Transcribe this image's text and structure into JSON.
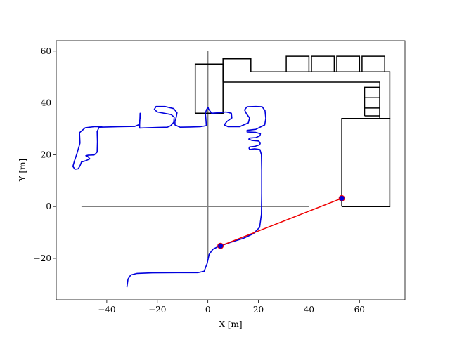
{
  "chart_data": {
    "type": "line",
    "xlabel": "X [m]",
    "ylabel": "Y [m]",
    "xlim": [
      -60,
      78
    ],
    "ylim": [
      -36,
      64
    ],
    "xticks": [
      -40,
      -20,
      0,
      20,
      40,
      60
    ],
    "yticks": [
      -20,
      0,
      20,
      40,
      60
    ],
    "xtick_labels": [
      "−40",
      "−20",
      "0",
      "20",
      "40",
      "60"
    ],
    "ytick_labels": [
      "−20",
      "0",
      "20",
      "40",
      "60"
    ],
    "grid": false,
    "colors": {
      "trajectory": "#0000dd",
      "segment": "#ee0000",
      "axes_cross": "#808080",
      "map": "#000000"
    },
    "crosshair": {
      "horizontal": [
        [
          -50,
          0
        ],
        [
          40,
          0
        ]
      ],
      "vertical": [
        [
          0,
          -20
        ],
        [
          0,
          60
        ]
      ]
    },
    "map_polylines": [
      [
        [
          -5,
          36
        ],
        [
          -5,
          55
        ],
        [
          6,
          55
        ],
        [
          6,
          36
        ],
        [
          -5,
          36
        ]
      ],
      [
        [
          6,
          48
        ],
        [
          6,
          57
        ],
        [
          17,
          57
        ],
        [
          17,
          52
        ],
        [
          72,
          52
        ],
        [
          72,
          34
        ],
        [
          68,
          34
        ],
        [
          68,
          48
        ],
        [
          6,
          48
        ]
      ],
      [
        [
          31,
          52
        ],
        [
          31,
          58
        ],
        [
          40,
          58
        ],
        [
          40,
          52
        ]
      ],
      [
        [
          41,
          52
        ],
        [
          41,
          58
        ],
        [
          50,
          58
        ],
        [
          50,
          52
        ]
      ],
      [
        [
          51,
          52
        ],
        [
          51,
          58
        ],
        [
          60,
          58
        ],
        [
          60,
          52
        ]
      ],
      [
        [
          61,
          52
        ],
        [
          61,
          58
        ],
        [
          70,
          58
        ],
        [
          70,
          52
        ]
      ],
      [
        [
          53,
          0
        ],
        [
          53,
          34
        ],
        [
          72,
          34
        ],
        [
          72,
          0
        ],
        [
          53,
          0
        ]
      ],
      [
        [
          62,
          35
        ],
        [
          62,
          46
        ],
        [
          68,
          46
        ],
        [
          68,
          35
        ],
        [
          62,
          35
        ]
      ],
      [
        [
          62,
          42
        ],
        [
          68,
          42
        ]
      ],
      [
        [
          62,
          38
        ],
        [
          68,
          38
        ]
      ]
    ],
    "trajectory": [
      [
        -32,
        -31
      ],
      [
        -31.6,
        -28
      ],
      [
        -30.5,
        -26.4
      ],
      [
        -28,
        -25.8
      ],
      [
        -22,
        -25.6
      ],
      [
        -12,
        -25.5
      ],
      [
        -4,
        -25.5
      ],
      [
        -1.5,
        -25
      ],
      [
        -0.3,
        -22
      ],
      [
        0.5,
        -18.5
      ],
      [
        2,
        -16.5
      ],
      [
        4,
        -15.5
      ],
      [
        5,
        -15.2
      ],
      [
        9,
        -13.8
      ],
      [
        14,
        -12.3
      ],
      [
        18,
        -10.5
      ],
      [
        20.5,
        -8
      ],
      [
        21.2,
        -3
      ],
      [
        21.3,
        5
      ],
      [
        21.3,
        14
      ],
      [
        21.2,
        20
      ],
      [
        20.6,
        22
      ],
      [
        18.5,
        22.3
      ],
      [
        16.5,
        22
      ],
      [
        16.3,
        22.5
      ],
      [
        16.5,
        23
      ],
      [
        18.5,
        23.2
      ],
      [
        20.5,
        23.8
      ],
      [
        20.8,
        24.6
      ],
      [
        20,
        25.3
      ],
      [
        17.5,
        25.5
      ],
      [
        16.2,
        26
      ],
      [
        16.5,
        26.4
      ],
      [
        19,
        26.6
      ],
      [
        20.6,
        27.3
      ],
      [
        20.8,
        28.1
      ],
      [
        19,
        28.6
      ],
      [
        15.5,
        28.8
      ],
      [
        15.5,
        29.4
      ],
      [
        19,
        29.8
      ],
      [
        22.5,
        31.5
      ],
      [
        22.9,
        34
      ],
      [
        22.6,
        37
      ],
      [
        21.5,
        38.5
      ],
      [
        19,
        38.6
      ],
      [
        15.5,
        38.5
      ],
      [
        14.5,
        37.3
      ],
      [
        15.3,
        35.8
      ],
      [
        16.5,
        34.2
      ],
      [
        16,
        32.3
      ],
      [
        12.5,
        30.8
      ],
      [
        8,
        30.8
      ],
      [
        6.5,
        31.5
      ],
      [
        7.5,
        32.8
      ],
      [
        9.5,
        34.2
      ],
      [
        9.3,
        36
      ],
      [
        7.2,
        36.5
      ],
      [
        4.5,
        36.2
      ],
      [
        1.5,
        36
      ],
      [
        0.3,
        37.6
      ],
      [
        0.1,
        38.3
      ],
      [
        -0.5,
        37.5
      ],
      [
        -1,
        36
      ],
      [
        -0.8,
        34
      ],
      [
        -0.6,
        31.2
      ],
      [
        -3,
        30.8
      ],
      [
        -7,
        30.7
      ],
      [
        -11,
        30.6
      ],
      [
        -13,
        31.5
      ],
      [
        -13,
        33
      ],
      [
        -12.5,
        34.5
      ],
      [
        -12.2,
        36.2
      ],
      [
        -13.5,
        37.8
      ],
      [
        -17,
        38.6
      ],
      [
        -20.5,
        38.6
      ],
      [
        -21.2,
        37.5
      ],
      [
        -20,
        36.5
      ],
      [
        -14.5,
        35.5
      ],
      [
        -13.3,
        34.5
      ],
      [
        -13.5,
        32.5
      ],
      [
        -14.7,
        31.2
      ],
      [
        -16,
        30.6
      ],
      [
        -20,
        30.5
      ],
      [
        -24,
        30.4
      ],
      [
        -27,
        30.3
      ],
      [
        -27,
        31.8
      ],
      [
        -26.9,
        33.8
      ],
      [
        -26.8,
        36
      ],
      [
        -26.8,
        34
      ],
      [
        -27.3,
        31.6
      ],
      [
        -29,
        30.9
      ],
      [
        -35,
        30.8
      ],
      [
        -40,
        30.7
      ],
      [
        -43,
        30.6
      ],
      [
        -43.8,
        29
      ],
      [
        -43.7,
        25
      ],
      [
        -43.8,
        21
      ],
      [
        -45,
        19.9
      ],
      [
        -47.5,
        19.8
      ],
      [
        -48.3,
        19.6
      ],
      [
        -47.5,
        19.3
      ],
      [
        -46.7,
        18.4
      ],
      [
        -48.5,
        17.6
      ],
      [
        -50,
        17.2
      ],
      [
        -50.6,
        15.7
      ],
      [
        -51.3,
        14.6
      ],
      [
        -52.6,
        14.4
      ],
      [
        -53.4,
        15.5
      ],
      [
        -52.8,
        17.6
      ],
      [
        -51.8,
        20.5
      ],
      [
        -50.6,
        24.5
      ],
      [
        -50.8,
        28.5
      ],
      [
        -48.5,
        30.4
      ],
      [
        -45,
        30.8
      ],
      [
        -42,
        30.9
      ]
    ],
    "segment": [
      [
        5,
        -15.2
      ],
      [
        53,
        3.2
      ]
    ],
    "markers": [
      [
        5,
        -15.2
      ],
      [
        53,
        3.2
      ]
    ]
  }
}
